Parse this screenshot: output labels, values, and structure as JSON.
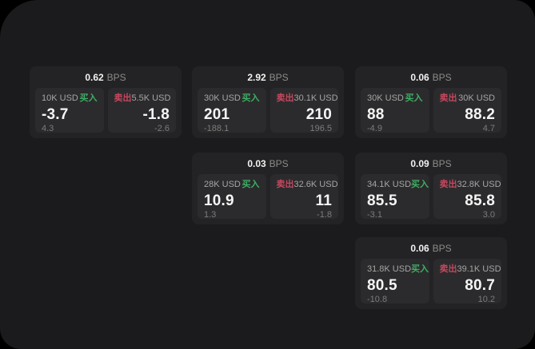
{
  "labels": {
    "bps": "BPS",
    "buy": "买入",
    "sell": "卖出"
  },
  "colors": {
    "buy": "#3fae63",
    "sell": "#c5485e",
    "window_bg": "#1b1b1d",
    "card_bg": "#232325",
    "panel_bg": "#2b2b2d"
  },
  "cards": [
    {
      "bps": "0.62",
      "buy": {
        "size": "10K USD",
        "value": "-3.7",
        "delta": "4.3"
      },
      "sell": {
        "size": "5.5K USD",
        "value": "-1.8",
        "delta": "-2.6"
      }
    },
    {
      "bps": "2.92",
      "buy": {
        "size": "30K USD",
        "value": "201",
        "delta": "-188.1"
      },
      "sell": {
        "size": "30.1K USD",
        "value": "210",
        "delta": "196.5"
      }
    },
    {
      "bps": "0.06",
      "buy": {
        "size": "30K USD",
        "value": "88",
        "delta": "-4.9"
      },
      "sell": {
        "size": "30K USD",
        "value": "88.2",
        "delta": "4.7"
      }
    },
    {
      "bps": "0.03",
      "buy": {
        "size": "28K USD",
        "value": "10.9",
        "delta": "1.3"
      },
      "sell": {
        "size": "32.6K USD",
        "value": "11",
        "delta": "-1.8"
      }
    },
    {
      "bps": "0.09",
      "buy": {
        "size": "34.1K USD",
        "value": "85.5",
        "delta": "-3.1"
      },
      "sell": {
        "size": "32.8K USD",
        "value": "85.8",
        "delta": "3.0"
      }
    },
    {
      "bps": "0.06",
      "buy": {
        "size": "31.8K USD",
        "value": "80.5",
        "delta": "-10.8"
      },
      "sell": {
        "size": "39.1K USD",
        "value": "80.7",
        "delta": "10.2"
      }
    }
  ]
}
